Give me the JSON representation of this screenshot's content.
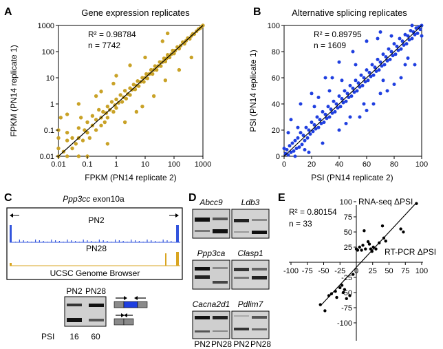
{
  "panels": {
    "A": {
      "letter": "A",
      "title": "Gene expression replicates",
      "r2": "R² = 0.98784",
      "n": "n = 7742",
      "xlabel": "FPKM (PN14 replicate 2)",
      "ylabel": "FPKM (PN14 replicate 1)",
      "ticks": [
        "0.01",
        "0.1",
        "1",
        "10",
        "100",
        "1000"
      ],
      "point_color": "#c9a227"
    },
    "B": {
      "letter": "B",
      "title": "Alternative splicing replicates",
      "r2": "R² = 0.89795",
      "n": "n = 1609",
      "xlabel": "PSI (PN14 replicate 2)",
      "ylabel": "PSI (PN14 replicate 1)",
      "xticks": [
        "0",
        "20",
        "40",
        "60",
        "80",
        "100"
      ],
      "yticks": [
        "0",
        "20",
        "40",
        "60",
        "80",
        "100"
      ],
      "point_color": "#1f3fe0"
    },
    "C": {
      "letter": "C",
      "gene": "Ppp3cc",
      "exon": " exon10a",
      "track1": "PN2",
      "track2": "PN28",
      "browser": "UCSC Genome Browser",
      "gel_label1": "PN2",
      "gel_label2": "PN28",
      "psi_label": "PSI",
      "psi1": "16",
      "psi2": "60",
      "track1_color": "#3355dd",
      "track2_color": "#d9a520"
    },
    "D": {
      "letter": "D",
      "genes": [
        "Abcc9",
        "Ldb3",
        "Ppp3ca",
        "Clasp1",
        "Cacna2d1",
        "Pdlim7"
      ],
      "lane1": "PN2",
      "lane2": "PN28"
    },
    "E": {
      "letter": "E",
      "r2": "R² = 0.80154",
      "n": "n = 33",
      "ylabel": "RNA-seq ΔPSI",
      "xlabel": "RT-PCR ΔPSI",
      "xticks": [
        "-100",
        "-75",
        "-50",
        "-25",
        "0",
        "25",
        "50",
        "75",
        "100"
      ],
      "yticks": [
        "100",
        "75",
        "50",
        "25",
        "-25",
        "-50",
        "-75",
        "-100"
      ]
    }
  },
  "chart_data": [
    {
      "type": "scatter",
      "title": "Gene expression replicates",
      "xlabel": "FPKM (PN14 replicate 2)",
      "ylabel": "FPKM (PN14 replicate 1)",
      "xscale": "log",
      "yscale": "log",
      "xlim": [
        0.01,
        1000
      ],
      "ylim": [
        0.01,
        1000
      ],
      "n": 7742,
      "r2": 0.98784,
      "fit_line": [
        [
          0.01,
          0.01
        ],
        [
          1000,
          1000
        ]
      ],
      "points": [
        [
          0.01,
          0.01
        ],
        [
          0.01,
          0.02
        ],
        [
          0.01,
          0.05
        ],
        [
          0.01,
          0.1
        ],
        [
          0.02,
          0.01
        ],
        [
          0.05,
          0.01
        ],
        [
          0.1,
          0.01
        ],
        [
          0.012,
          0.3
        ],
        [
          0.015,
          0.015
        ],
        [
          0.02,
          0.04
        ],
        [
          0.02,
          0.08
        ],
        [
          0.03,
          0.02
        ],
        [
          0.03,
          0.05
        ],
        [
          0.04,
          0.03
        ],
        [
          0.05,
          0.05
        ],
        [
          0.05,
          0.12
        ],
        [
          0.06,
          0.3
        ],
        [
          0.07,
          0.04
        ],
        [
          0.08,
          0.1
        ],
        [
          0.1,
          0.08
        ],
        [
          0.1,
          0.2
        ],
        [
          0.12,
          0.05
        ],
        [
          0.15,
          0.15
        ],
        [
          0.15,
          0.35
        ],
        [
          0.2,
          0.1
        ],
        [
          0.2,
          0.25
        ],
        [
          0.25,
          0.6
        ],
        [
          0.3,
          0.15
        ],
        [
          0.3,
          0.3
        ],
        [
          0.35,
          0.5
        ],
        [
          0.4,
          0.2
        ],
        [
          0.45,
          0.45
        ],
        [
          0.5,
          0.8
        ],
        [
          0.5,
          0.3
        ],
        [
          0.6,
          0.6
        ],
        [
          0.7,
          1.2
        ],
        [
          0.8,
          0.5
        ],
        [
          0.9,
          0.9
        ],
        [
          1,
          1.5
        ],
        [
          1,
          0.7
        ],
        [
          1.2,
          1.1
        ],
        [
          1.4,
          2.2
        ],
        [
          1.6,
          1.2
        ],
        [
          1.8,
          1.8
        ],
        [
          2,
          3.2
        ],
        [
          2.2,
          1.6
        ],
        [
          2.5,
          2.4
        ],
        [
          3,
          4
        ],
        [
          3,
          2.2
        ],
        [
          3.5,
          3.5
        ],
        [
          4,
          5.5
        ],
        [
          4.5,
          3.6
        ],
        [
          5,
          5
        ],
        [
          5.5,
          7.5
        ],
        [
          6,
          4.8
        ],
        [
          7,
          7
        ],
        [
          8,
          10
        ],
        [
          9,
          7
        ],
        [
          10,
          10
        ],
        [
          11,
          14
        ],
        [
          12,
          9.5
        ],
        [
          14,
          14
        ],
        [
          16,
          20
        ],
        [
          18,
          14
        ],
        [
          20,
          20
        ],
        [
          22,
          28
        ],
        [
          25,
          20
        ],
        [
          28,
          28
        ],
        [
          32,
          40
        ],
        [
          35,
          28
        ],
        [
          40,
          40
        ],
        [
          45,
          55
        ],
        [
          50,
          42
        ],
        [
          55,
          55
        ],
        [
          60,
          75
        ],
        [
          70,
          60
        ],
        [
          80,
          80
        ],
        [
          90,
          110
        ],
        [
          100,
          85
        ],
        [
          110,
          110
        ],
        [
          130,
          150
        ],
        [
          150,
          130
        ],
        [
          170,
          170
        ],
        [
          200,
          230
        ],
        [
          230,
          200
        ],
        [
          260,
          260
        ],
        [
          300,
          330
        ],
        [
          350,
          310
        ],
        [
          400,
          400
        ],
        [
          450,
          480
        ],
        [
          500,
          470
        ],
        [
          600,
          600
        ],
        [
          700,
          720
        ],
        [
          800,
          780
        ],
        [
          900,
          900
        ],
        [
          1000,
          1000
        ],
        [
          0.3,
          3
        ],
        [
          0.5,
          0.03
        ],
        [
          2,
          0.2
        ],
        [
          0.2,
          2
        ],
        [
          5,
          0.5
        ],
        [
          0.8,
          6
        ],
        [
          20,
          2
        ],
        [
          3,
          30
        ],
        [
          50,
          8
        ],
        [
          10,
          60
        ],
        [
          150,
          20
        ],
        [
          40,
          250
        ],
        [
          8,
          0.8
        ],
        [
          1,
          12
        ],
        [
          60,
          500
        ],
        [
          0.05,
          1
        ],
        [
          400,
          60
        ],
        [
          0.02,
          0.4
        ]
      ]
    },
    {
      "type": "scatter",
      "title": "Alternative splicing replicates",
      "xlabel": "PSI (PN14 replicate 2)",
      "ylabel": "PSI (PN14 replicate 1)",
      "xlim": [
        0,
        100
      ],
      "ylim": [
        0,
        100
      ],
      "n": 1609,
      "r2": 0.89795,
      "fit_line": [
        [
          0,
          0
        ],
        [
          100,
          100
        ]
      ],
      "points": [
        [
          1,
          2
        ],
        [
          2,
          5
        ],
        [
          3,
          1
        ],
        [
          4,
          8
        ],
        [
          5,
          3
        ],
        [
          6,
          10
        ],
        [
          7,
          4
        ],
        [
          8,
          12
        ],
        [
          9,
          6
        ],
        [
          10,
          14
        ],
        [
          11,
          7
        ],
        [
          12,
          18
        ],
        [
          13,
          9
        ],
        [
          14,
          16
        ],
        [
          15,
          12
        ],
        [
          16,
          22
        ],
        [
          17,
          14
        ],
        [
          18,
          20
        ],
        [
          19,
          17
        ],
        [
          20,
          26
        ],
        [
          21,
          19
        ],
        [
          22,
          24
        ],
        [
          23,
          21
        ],
        [
          24,
          30
        ],
        [
          25,
          22
        ],
        [
          26,
          28
        ],
        [
          27,
          25
        ],
        [
          28,
          34
        ],
        [
          29,
          26
        ],
        [
          30,
          32
        ],
        [
          31,
          29
        ],
        [
          32,
          38
        ],
        [
          33,
          30
        ],
        [
          34,
          36
        ],
        [
          35,
          33
        ],
        [
          36,
          42
        ],
        [
          37,
          34
        ],
        [
          38,
          40
        ],
        [
          39,
          37
        ],
        [
          40,
          46
        ],
        [
          41,
          38
        ],
        [
          42,
          44
        ],
        [
          43,
          41
        ],
        [
          44,
          50
        ],
        [
          45,
          42
        ],
        [
          46,
          48
        ],
        [
          47,
          45
        ],
        [
          48,
          54
        ],
        [
          49,
          46
        ],
        [
          50,
          52
        ],
        [
          51,
          49
        ],
        [
          52,
          58
        ],
        [
          53,
          50
        ],
        [
          54,
          56
        ],
        [
          55,
          53
        ],
        [
          56,
          62
        ],
        [
          57,
          54
        ],
        [
          58,
          60
        ],
        [
          59,
          57
        ],
        [
          60,
          66
        ],
        [
          61,
          58
        ],
        [
          62,
          64
        ],
        [
          63,
          61
        ],
        [
          64,
          70
        ],
        [
          65,
          62
        ],
        [
          66,
          68
        ],
        [
          67,
          65
        ],
        [
          68,
          74
        ],
        [
          69,
          66
        ],
        [
          70,
          72
        ],
        [
          71,
          69
        ],
        [
          72,
          78
        ],
        [
          73,
          70
        ],
        [
          74,
          76
        ],
        [
          75,
          73
        ],
        [
          76,
          82
        ],
        [
          77,
          74
        ],
        [
          78,
          80
        ],
        [
          79,
          77
        ],
        [
          80,
          86
        ],
        [
          81,
          78
        ],
        [
          82,
          84
        ],
        [
          83,
          81
        ],
        [
          84,
          90
        ],
        [
          85,
          82
        ],
        [
          86,
          88
        ],
        [
          87,
          85
        ],
        [
          88,
          93
        ],
        [
          89,
          86
        ],
        [
          90,
          92
        ],
        [
          91,
          89
        ],
        [
          92,
          96
        ],
        [
          93,
          90
        ],
        [
          94,
          95
        ],
        [
          95,
          93
        ],
        [
          96,
          98
        ],
        [
          97,
          94
        ],
        [
          98,
          99
        ],
        [
          99,
          97
        ],
        [
          100,
          100
        ],
        [
          5,
          28
        ],
        [
          12,
          40
        ],
        [
          20,
          48
        ],
        [
          30,
          60
        ],
        [
          40,
          72
        ],
        [
          50,
          80
        ],
        [
          60,
          88
        ],
        [
          70,
          95
        ],
        [
          15,
          5
        ],
        [
          28,
          10
        ],
        [
          40,
          20
        ],
        [
          55,
          30
        ],
        [
          65,
          40
        ],
        [
          75,
          50
        ],
        [
          85,
          60
        ],
        [
          95,
          70
        ],
        [
          10,
          22
        ],
        [
          35,
          60
        ],
        [
          45,
          25
        ],
        [
          68,
          90
        ],
        [
          80,
          55
        ],
        [
          90,
          75
        ],
        [
          25,
          45
        ],
        [
          60,
          35
        ],
        [
          3,
          18
        ],
        [
          18,
          3
        ],
        [
          8,
          0
        ],
        [
          0,
          6
        ],
        [
          100,
          92
        ],
        [
          93,
          100
        ],
        [
          52,
          70
        ],
        [
          70,
          48
        ],
        [
          33,
          50
        ],
        [
          48,
          30
        ],
        [
          78,
          92
        ],
        [
          88,
          70
        ],
        [
          22,
          38
        ],
        [
          42,
          58
        ],
        [
          58,
          40
        ],
        [
          72,
          58
        ]
      ]
    },
    {
      "type": "scatter",
      "xlabel": "RT-PCR ΔPSI",
      "ylabel": "RNA-seq ΔPSI",
      "xlim": [
        -100,
        100
      ],
      "ylim": [
        -100,
        100
      ],
      "n": 33,
      "r2": 0.80154,
      "fit_line": [
        [
          -55,
          -72
        ],
        [
          90,
          96
        ]
      ],
      "points": [
        [
          -55,
          -70
        ],
        [
          -48,
          -80
        ],
        [
          -42,
          -55
        ],
        [
          -38,
          -52
        ],
        [
          -32,
          -48
        ],
        [
          -30,
          -58
        ],
        [
          -25,
          -42
        ],
        [
          -22,
          -38
        ],
        [
          -20,
          -50
        ],
        [
          -18,
          -45
        ],
        [
          -15,
          -60
        ],
        [
          -10,
          -55
        ],
        [
          -5,
          -20
        ],
        [
          0,
          22
        ],
        [
          2,
          20
        ],
        [
          5,
          25
        ],
        [
          8,
          20
        ],
        [
          10,
          28
        ],
        [
          12,
          52
        ],
        [
          14,
          22
        ],
        [
          18,
          34
        ],
        [
          20,
          30
        ],
        [
          22,
          22
        ],
        [
          24,
          18
        ],
        [
          26,
          25
        ],
        [
          30,
          22
        ],
        [
          35,
          32
        ],
        [
          40,
          60
        ],
        [
          42,
          40
        ],
        [
          45,
          35
        ],
        [
          68,
          55
        ],
        [
          72,
          50
        ],
        [
          92,
          97
        ]
      ]
    }
  ]
}
